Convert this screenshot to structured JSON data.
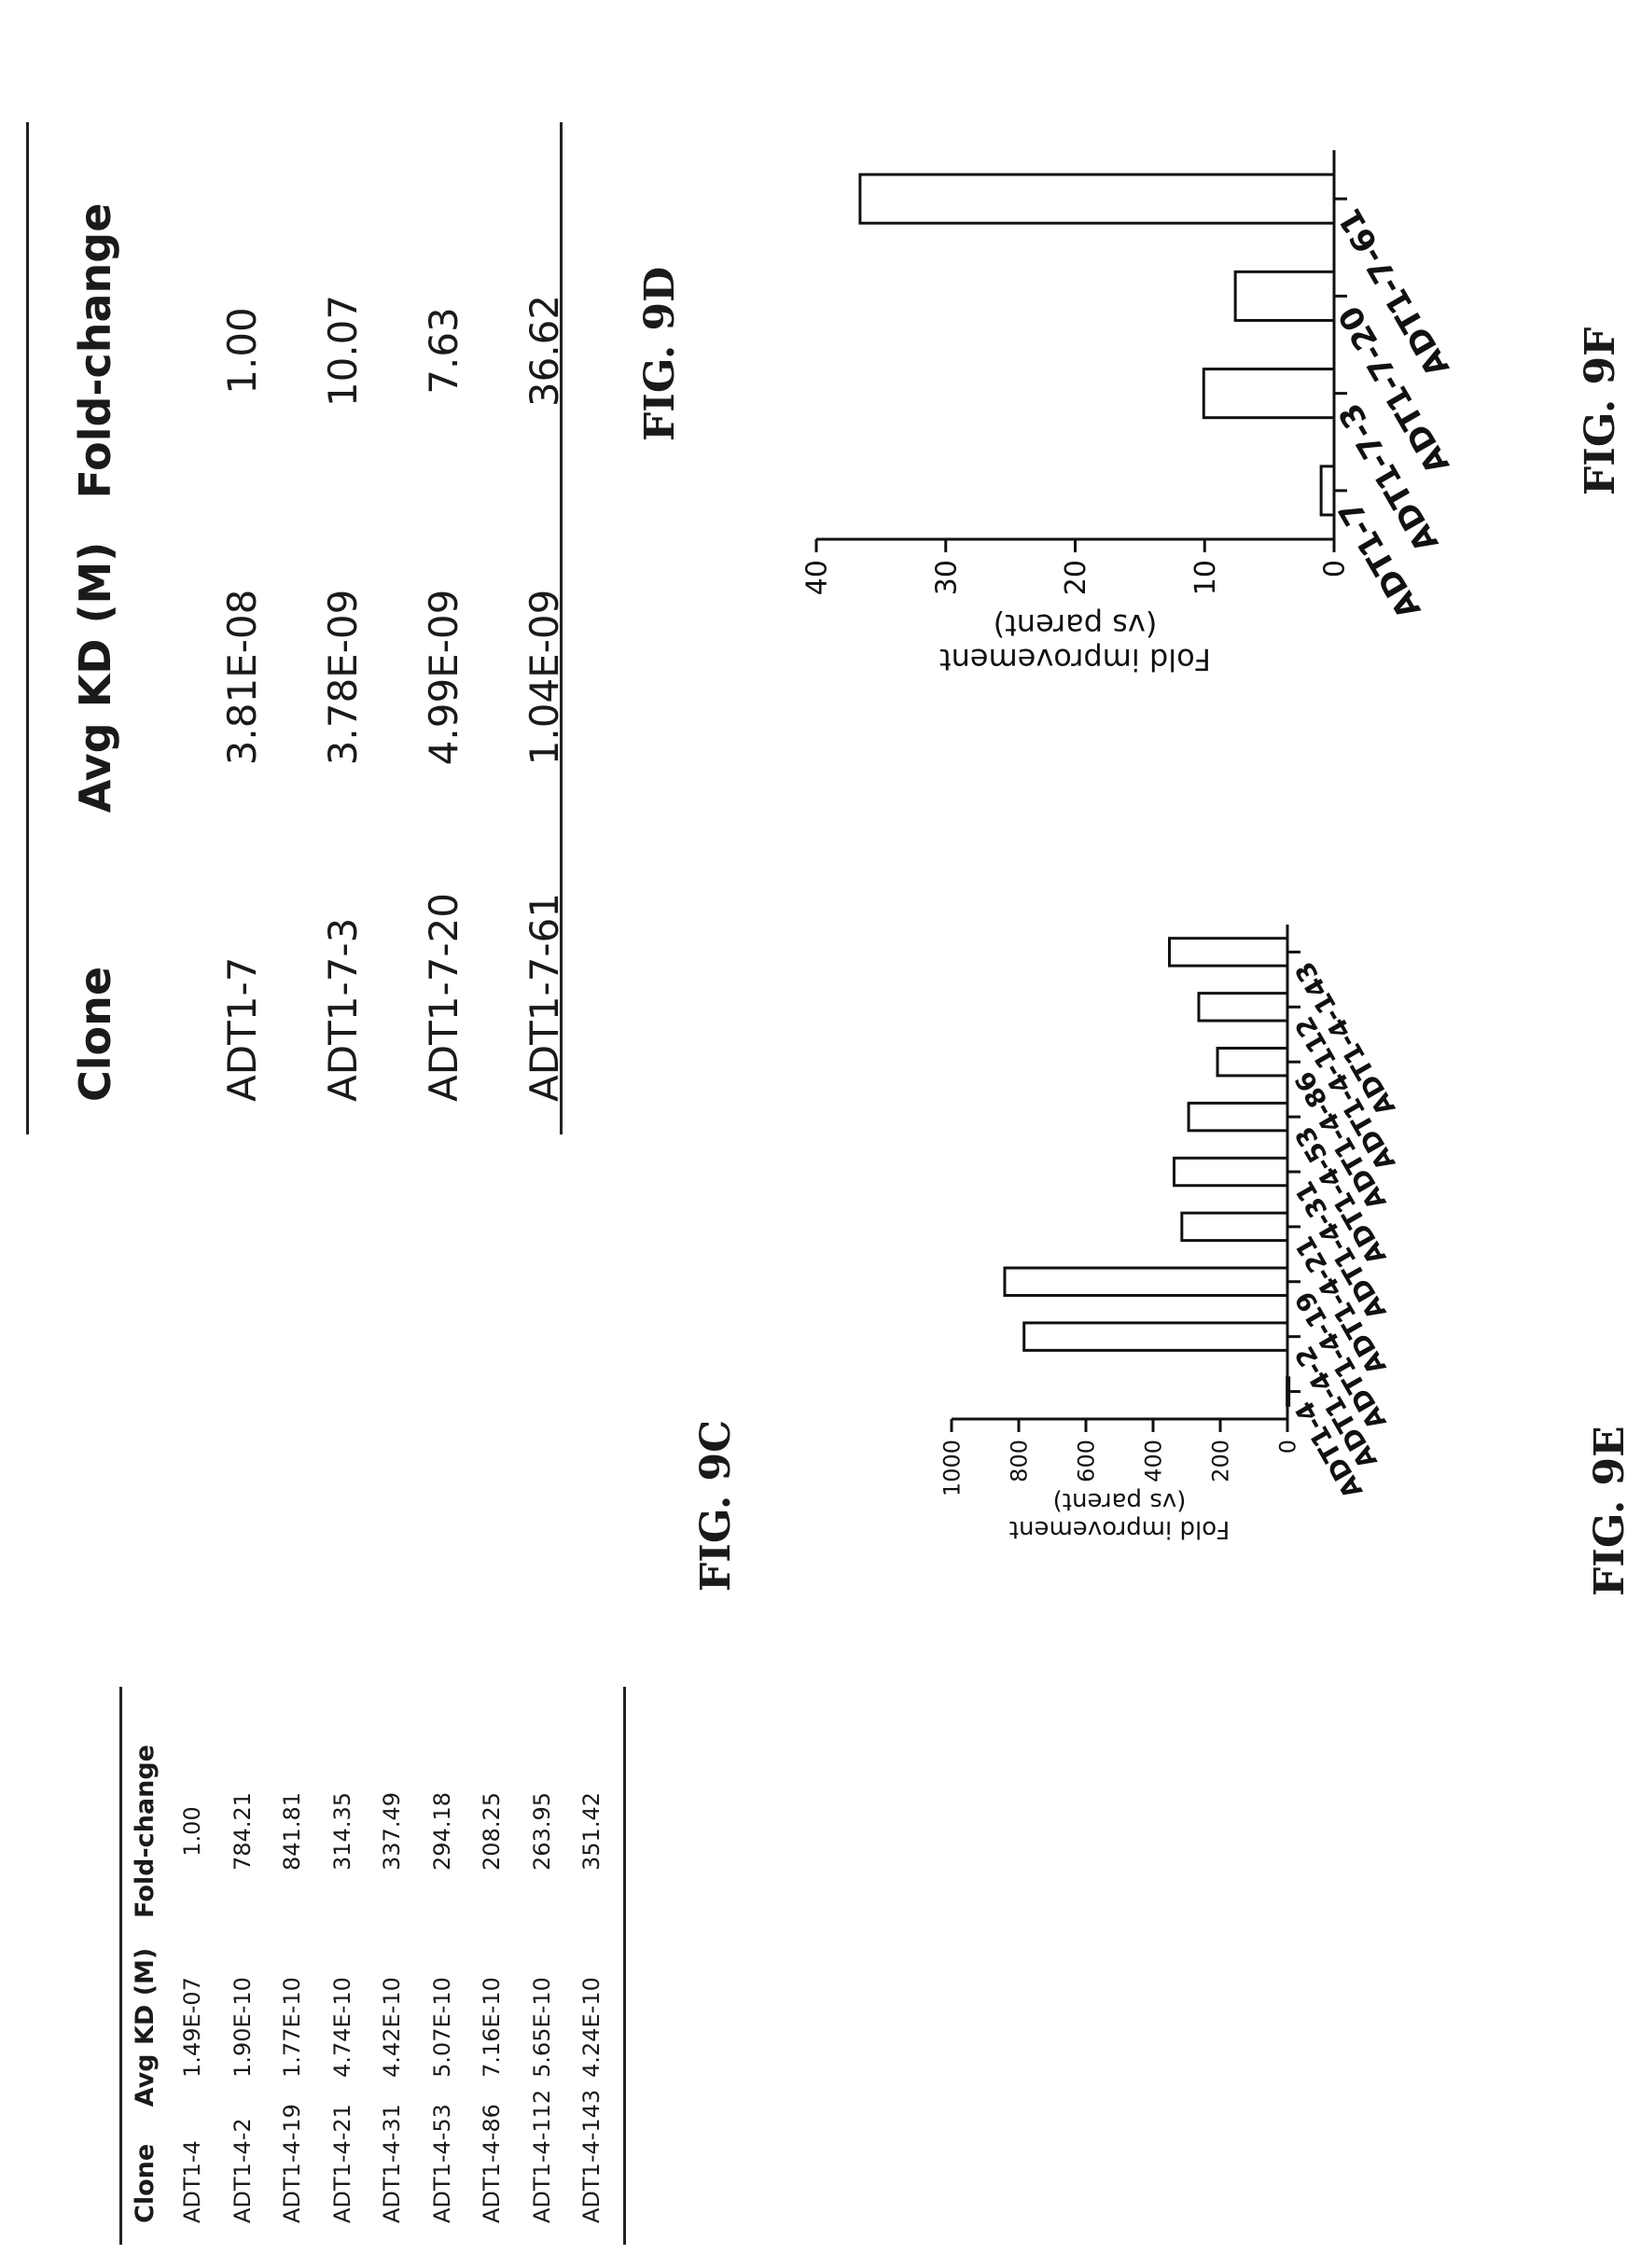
{
  "table_9c": {
    "headers": [
      "Clone",
      "Avg KD (M)",
      "Fold-change"
    ],
    "rows": [
      [
        "ADT1-4",
        "1.49E-07",
        "1.00"
      ],
      [
        "ADT1-4-2",
        "1.90E-10",
        "784.21"
      ],
      [
        "ADT1-4-19",
        "1.77E-10",
        "841.81"
      ],
      [
        "ADT1-4-21",
        "4.74E-10",
        "314.35"
      ],
      [
        "ADT1-4-31",
        "4.42E-10",
        "337.49"
      ],
      [
        "ADT1-4-53",
        "5.07E-10",
        "294.18"
      ],
      [
        "ADT1-4-86",
        "7.16E-10",
        "208.25"
      ],
      [
        "ADT1-4-112",
        "5.65E-10",
        "263.95"
      ],
      [
        "ADT1-4-143",
        "4.24E-10",
        "351.42"
      ]
    ],
    "caption": "FIG. 9C"
  },
  "table_9d": {
    "headers": [
      "Clone",
      "Avg KD (M)",
      "Fold-change"
    ],
    "rows": [
      [
        "ADT1-7",
        "3.81E-08",
        "1.00"
      ],
      [
        "ADT1-7-3",
        "3.78E-09",
        "10.07"
      ],
      [
        "ADT1-7-20",
        "4.99E-09",
        "7.63"
      ],
      [
        "ADT1-7-61",
        "1.04E-09",
        "36.62"
      ]
    ],
    "caption": "FIG. 9D"
  },
  "chart_data": [
    {
      "type": "bar",
      "caption": "FIG. 9E",
      "ylabel": "Fold improvement",
      "ylabel2": "(vs parent)",
      "categories": [
        "ADT1-4",
        "ADT1-4-2",
        "ADT1-4-19",
        "ADT1-4-21",
        "ADT1-4-31",
        "ADT1-4-53",
        "ADT1-4-86",
        "ADT1-4-112",
        "ADT1-4-143"
      ],
      "values": [
        1.0,
        784.21,
        841.81,
        314.35,
        337.49,
        294.18,
        208.25,
        263.95,
        351.42
      ],
      "ylim": [
        0,
        1000
      ],
      "yticks": [
        "0",
        "200",
        "400",
        "600",
        "800",
        "1000"
      ],
      "grid": false
    },
    {
      "type": "bar",
      "caption": "FIG. 9F",
      "ylabel": "Fold improvement",
      "ylabel2": "(vs parent)",
      "categories": [
        "ADT1-7",
        "ADT1-7-3",
        "ADT1-7-20",
        "ADT1-7-61"
      ],
      "values": [
        1.0,
        10.07,
        7.63,
        36.62
      ],
      "ylim": [
        0,
        40
      ],
      "yticks": [
        "0",
        "10",
        "20",
        "30",
        "40"
      ],
      "grid": false
    }
  ]
}
